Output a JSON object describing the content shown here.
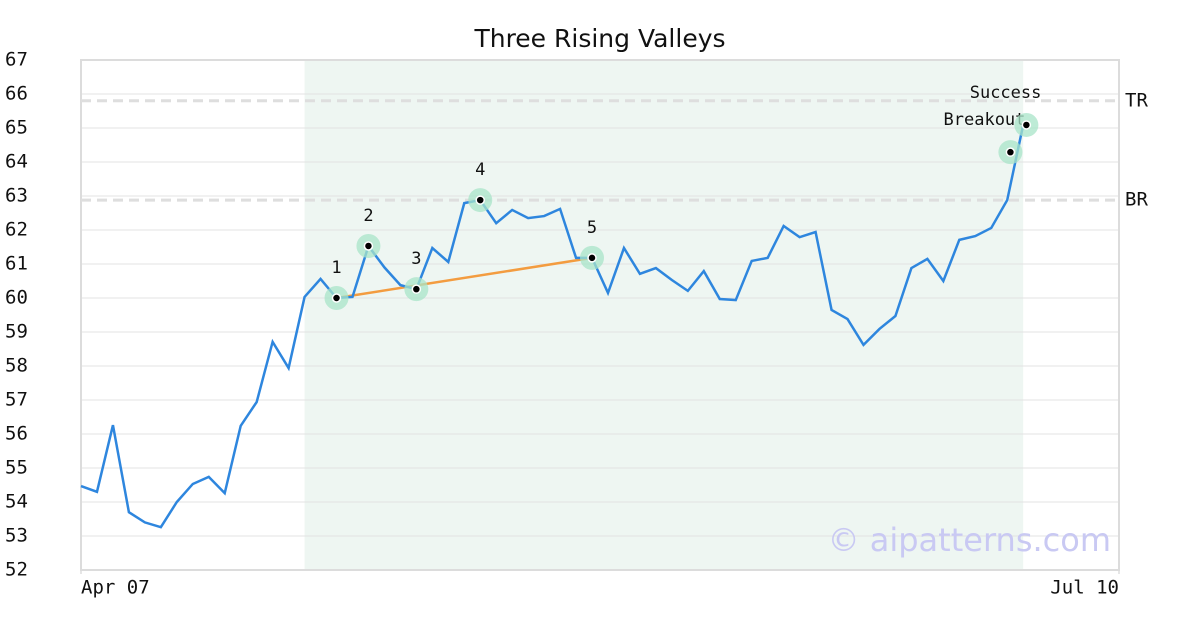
{
  "chart_data": {
    "type": "line",
    "title": "Three Rising Valleys",
    "x": [
      0,
      1,
      2,
      3,
      4,
      5,
      6,
      7,
      8,
      9,
      10,
      11,
      12,
      13,
      14,
      15,
      16,
      17,
      18,
      19,
      20,
      21,
      22,
      23,
      24,
      25,
      26,
      27,
      28,
      29,
      30,
      31,
      32,
      33,
      34,
      35,
      36,
      37,
      38,
      39,
      40,
      41,
      42,
      43,
      44,
      45,
      46,
      47,
      48,
      49,
      50,
      51,
      52,
      53,
      54,
      55,
      56,
      57,
      58,
      59
    ],
    "values": [
      54.47,
      54.3,
      56.26,
      53.7,
      53.4,
      53.26,
      54.0,
      54.53,
      54.74,
      54.26,
      56.24,
      56.94,
      58.71,
      57.94,
      60.03,
      60.56,
      60.0,
      60.03,
      61.53,
      60.9,
      60.38,
      60.26,
      61.47,
      61.06,
      62.79,
      62.88,
      62.2,
      62.59,
      62.35,
      62.41,
      62.62,
      61.18,
      61.18,
      60.15,
      61.47,
      60.71,
      60.88,
      60.53,
      60.21,
      60.79,
      59.97,
      59.94,
      61.09,
      61.18,
      62.12,
      61.79,
      61.94,
      59.65,
      59.38,
      58.62,
      59.09,
      59.47,
      60.88,
      61.15,
      60.5,
      61.71,
      61.82,
      62.06,
      62.88,
      65.09
    ],
    "color": "#2e86de",
    "xlim": [
      0,
      65
    ],
    "xticks": [
      {
        "value": 0,
        "label": "Apr 07"
      },
      {
        "value": 65,
        "label": "Jul 10"
      }
    ],
    "ylim": [
      52,
      67
    ],
    "yticks": [
      52,
      53,
      54,
      55,
      56,
      57,
      58,
      59,
      60,
      61,
      62,
      63,
      64,
      65,
      66,
      67
    ],
    "grid": true,
    "shaded_region": [
      14,
      59
    ],
    "levels": [
      {
        "label": "TR",
        "value": 65.8
      },
      {
        "label": "BR",
        "value": 62.88
      }
    ],
    "trend_line": {
      "x": [
        16,
        32
      ],
      "y": [
        60.0,
        61.18
      ],
      "color": "#f39c40"
    },
    "markers": [
      {
        "label": "1",
        "x": 16,
        "y": 60.0
      },
      {
        "label": "2",
        "x": 18,
        "y": 61.53
      },
      {
        "label": "3",
        "x": 21,
        "y": 60.26
      },
      {
        "label": "4",
        "x": 25,
        "y": 62.88
      },
      {
        "label": "5",
        "x": 32,
        "y": 61.18
      },
      {
        "label": "Breakout",
        "x": 58.2,
        "y": 64.29
      },
      {
        "label": "Success",
        "x": 59.2,
        "y": 65.09
      }
    ],
    "watermark": "© aipatterns.com"
  }
}
